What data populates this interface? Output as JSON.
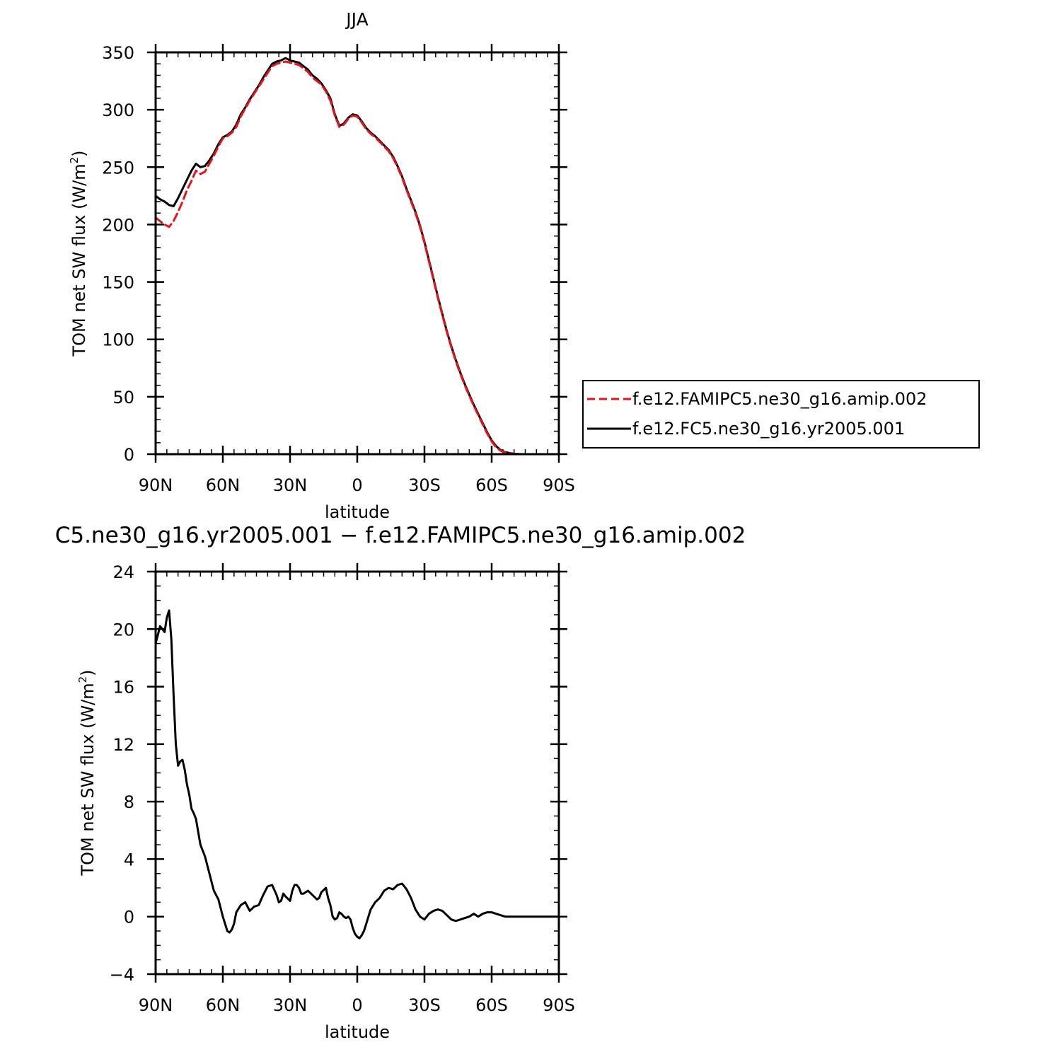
{
  "chart_data": [
    {
      "type": "line",
      "title": "JJA",
      "xlabel": "latitude",
      "ylabel": "TOM net SW flux (W/m²)",
      "ylabel_parts": [
        "TOM net SW flux (W/m",
        "2",
        ")"
      ],
      "xlim": [
        90,
        -90
      ],
      "ylim": [
        0,
        350
      ],
      "x_ticks": [
        90,
        60,
        30,
        0,
        -30,
        -60,
        -90
      ],
      "x_tick_labels": [
        "90N",
        "60N",
        "30N",
        "0",
        "30S",
        "60S",
        "90S"
      ],
      "y_ticks": [
        0,
        50,
        100,
        150,
        200,
        250,
        300,
        350
      ],
      "y_tick_labels": [
        "0",
        "50",
        "100",
        "150",
        "200",
        "250",
        "300",
        "350"
      ],
      "legend_position": "right",
      "series": [
        {
          "name": "f.e12.FAMIPC5.ne30_g16.amip.002",
          "color": "#e8141c",
          "dash": "dashed",
          "x": [
            90,
            88,
            86,
            84,
            82,
            80,
            78,
            76,
            74,
            72,
            70,
            68,
            66,
            64,
            62,
            60,
            58,
            56,
            54,
            52,
            50,
            48,
            46,
            44,
            42,
            40,
            38,
            36,
            34,
            32,
            30,
            28,
            26,
            24,
            22,
            20,
            18,
            16,
            14,
            12,
            10,
            8,
            6,
            4,
            2,
            0,
            -2,
            -4,
            -6,
            -8,
            -10,
            -12,
            -14,
            -16,
            -18,
            -20,
            -22,
            -24,
            -26,
            -28,
            -30,
            -32,
            -34,
            -36,
            -38,
            -40,
            -42,
            -44,
            -46,
            -48,
            -50,
            -52,
            -54,
            -56,
            -58,
            -60,
            -62,
            -64,
            -66,
            -68,
            -70,
            -72,
            -74,
            -76,
            -78,
            -80,
            -84,
            -88,
            -90
          ],
          "y": [
            206,
            203,
            200,
            198,
            203,
            211,
            220,
            230,
            238,
            247,
            244,
            246,
            253,
            260,
            268,
            275,
            277,
            280,
            285,
            294,
            301,
            308,
            314,
            320,
            326,
            332,
            338,
            340,
            341,
            342,
            341,
            340,
            339,
            336,
            333,
            328,
            325,
            322,
            316,
            308,
            295,
            285,
            287,
            292,
            295,
            294,
            289,
            283,
            279,
            276,
            272,
            268,
            264,
            258,
            250,
            241,
            230,
            220,
            210,
            198,
            184,
            168,
            152,
            136,
            121,
            106,
            93,
            81,
            70,
            60,
            51,
            42,
            34,
            26,
            18,
            11,
            6,
            3,
            1.5,
            0.8,
            0.3,
            0.1,
            0,
            0,
            0,
            0,
            0,
            0,
            0
          ]
        },
        {
          "name": "f.e12.FC5.ne30_g16.yr2005.001",
          "color": "#000000",
          "dash": "solid",
          "x": [
            90,
            88,
            86,
            84,
            82,
            80,
            78,
            76,
            74,
            72,
            70,
            68,
            66,
            64,
            62,
            60,
            58,
            56,
            54,
            52,
            50,
            48,
            46,
            44,
            42,
            40,
            38,
            36,
            34,
            32,
            30,
            28,
            26,
            24,
            22,
            20,
            18,
            16,
            14,
            12,
            10,
            8,
            6,
            4,
            2,
            0,
            -2,
            -4,
            -6,
            -8,
            -10,
            -12,
            -14,
            -16,
            -18,
            -20,
            -22,
            -24,
            -26,
            -28,
            -30,
            -32,
            -34,
            -36,
            -38,
            -40,
            -42,
            -44,
            -46,
            -48,
            -50,
            -52,
            -54,
            -56,
            -58,
            -60,
            -62,
            -64,
            -66,
            -68,
            -70,
            -72,
            -74,
            -76,
            -78,
            -80,
            -84,
            -88,
            -90
          ],
          "y": [
            225,
            222,
            220,
            217,
            216,
            223,
            231,
            239,
            247,
            253,
            250,
            251,
            256,
            262,
            270,
            276,
            278,
            281,
            287,
            296,
            302,
            309,
            315,
            321,
            328,
            334,
            340,
            342,
            343,
            345,
            343,
            342,
            341,
            338,
            335,
            330,
            327,
            323,
            317,
            310,
            296,
            286,
            288,
            293,
            296,
            295,
            290,
            284,
            280,
            277,
            273,
            269,
            265,
            259,
            251,
            242,
            231,
            221,
            211,
            199,
            185,
            169,
            153,
            137,
            122,
            107,
            94,
            82,
            71,
            61,
            52,
            43,
            35,
            27,
            19,
            12,
            7,
            3.5,
            1.8,
            1,
            0.4,
            0.1,
            0,
            0,
            0,
            0,
            0,
            0,
            0
          ]
        }
      ]
    },
    {
      "type": "line",
      "title": "C5.ne30_g16.yr2005.001 − f.e12.FAMIPC5.ne30_g16.amip.002",
      "xlabel": "latitude",
      "ylabel": "TOM net SW flux (W/m²)",
      "ylabel_parts": [
        "TOM net SW flux (W/m",
        "2",
        ")"
      ],
      "xlim": [
        90,
        -90
      ],
      "ylim": [
        -4,
        24
      ],
      "x_ticks": [
        90,
        60,
        30,
        0,
        -30,
        -60,
        -90
      ],
      "x_tick_labels": [
        "90N",
        "60N",
        "30N",
        "0",
        "30S",
        "60S",
        "90S"
      ],
      "y_ticks": [
        -4,
        0,
        4,
        8,
        12,
        16,
        20,
        24
      ],
      "y_tick_labels": [
        "−4",
        "0",
        "4",
        "8",
        "12",
        "16",
        "20",
        "24"
      ],
      "series": [
        {
          "name": "",
          "color": "#000000",
          "dash": "solid",
          "x": [
            90,
            88,
            86,
            85,
            84,
            83,
            82,
            81,
            80,
            79,
            78,
            77,
            76,
            75,
            74,
            73,
            72,
            70,
            68,
            66,
            64,
            62,
            60,
            58,
            57,
            56,
            55,
            54,
            52,
            50,
            48,
            46,
            44,
            42,
            40,
            38,
            36,
            35,
            34,
            33,
            32,
            30,
            29,
            28,
            27,
            26,
            25,
            24,
            22,
            20,
            18,
            17,
            16,
            14,
            13,
            12,
            11,
            10,
            9,
            8,
            7,
            6,
            5,
            4,
            3,
            2,
            1,
            0,
            -1,
            -2,
            -3,
            -4,
            -5,
            -6,
            -8,
            -10,
            -12,
            -14,
            -16,
            -18,
            -20,
            -22,
            -24,
            -26,
            -28,
            -30,
            -32,
            -34,
            -36,
            -38,
            -40,
            -42,
            -44,
            -46,
            -48,
            -50,
            -52,
            -54,
            -56,
            -58,
            -60,
            -62,
            -64,
            -66,
            -68,
            -70,
            -72,
            -74,
            -76,
            -78,
            -80,
            -84,
            -88,
            -90
          ],
          "y": [
            19,
            20.2,
            19.8,
            20.8,
            21.3,
            19.3,
            15.5,
            12,
            10.5,
            10.8,
            10.9,
            10.2,
            9.2,
            8.5,
            7.5,
            7.2,
            6.8,
            5,
            4.2,
            3,
            1.8,
            1.2,
            0,
            -1,
            -1.1,
            -0.9,
            -0.5,
            0.3,
            0.8,
            1.0,
            0.4,
            0.7,
            0.8,
            1.5,
            2.1,
            2.2,
            1.5,
            1.0,
            1.1,
            1.6,
            1.4,
            1.1,
            1.8,
            2.2,
            2.2,
            2.0,
            1.6,
            1.6,
            1.8,
            1.5,
            1.2,
            1.3,
            1.7,
            2.0,
            1.3,
            0.8,
            0.0,
            -0.2,
            -0.1,
            0.3,
            0.2,
            0.0,
            -0.1,
            0.0,
            -0.2,
            -0.8,
            -1.2,
            -1.4,
            -1.5,
            -1.3,
            -1.0,
            -0.5,
            0.0,
            0.5,
            1.0,
            1.3,
            1.8,
            2.0,
            1.9,
            2.2,
            2.3,
            1.9,
            1.3,
            0.5,
            0.0,
            -0.2,
            0.2,
            0.4,
            0.5,
            0.4,
            0.1,
            -0.2,
            -0.3,
            -0.2,
            -0.1,
            0.0,
            0.2,
            0.0,
            0.2,
            0.3,
            0.3,
            0.2,
            0.1,
            0.0,
            0.0,
            0.0,
            0.0,
            0.0,
            0.0,
            0.0,
            0.0,
            0.0,
            0.0,
            0.0
          ]
        }
      ]
    }
  ]
}
